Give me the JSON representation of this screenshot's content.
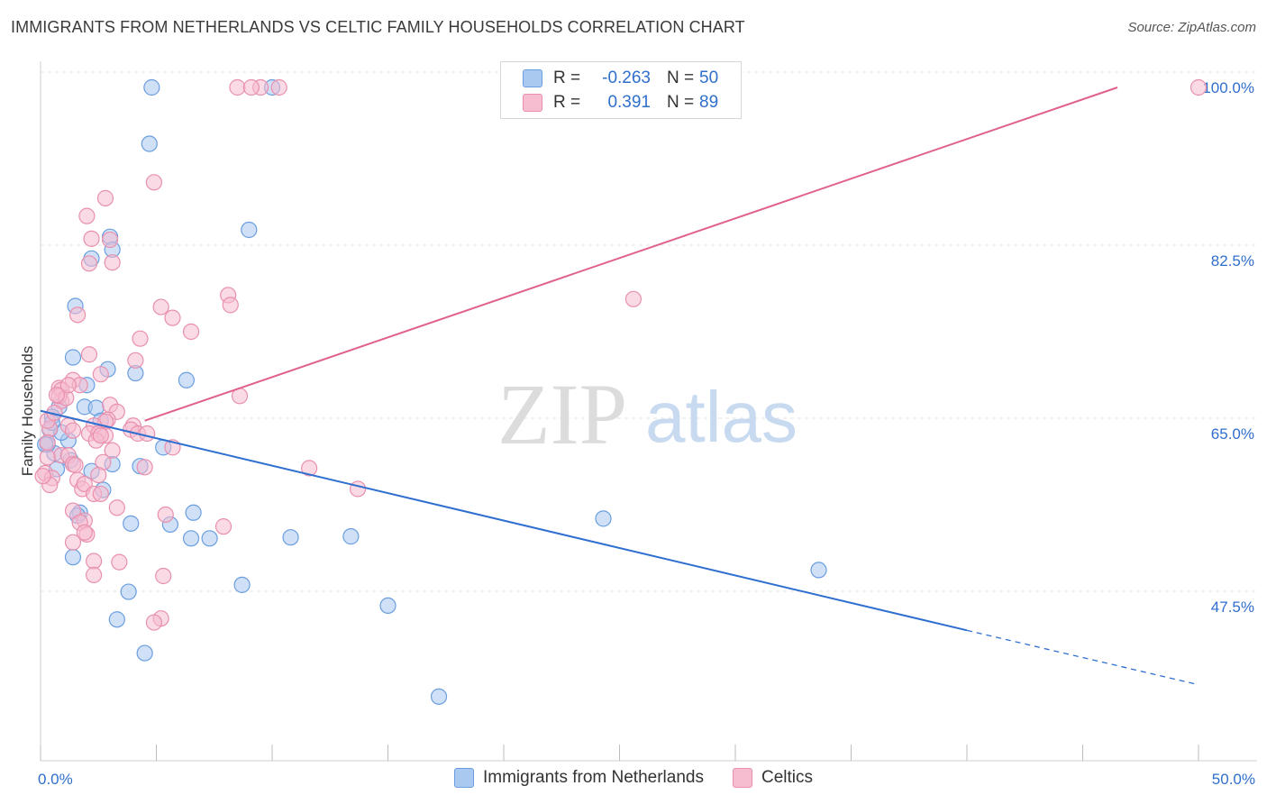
{
  "title": "IMMIGRANTS FROM NETHERLANDS VS CELTIC FAMILY HOUSEHOLDS CORRELATION CHART",
  "source": "Source: ZipAtlas.com",
  "watermark": {
    "zip": "ZIP",
    "atlas": "atlas"
  },
  "legend": {
    "r_label": "R =",
    "n_label": "N =",
    "series": [
      {
        "name": "Immigrants from Netherlands",
        "r": "-0.263",
        "n": "50"
      },
      {
        "name": "Celtics",
        "r": "0.391",
        "n": "89"
      }
    ]
  },
  "colors": {
    "blue_fill": "#aac9f0",
    "blue_stroke": "#6a9ee0",
    "blue_line": "#2f6fd0",
    "pink_fill": "#f6bcd0",
    "pink_stroke": "#e890ae",
    "pink_line": "#e0608e",
    "axis_label": "#2f6fcc",
    "grid": "#e3e3e3"
  },
  "chart_data": {
    "type": "scatter",
    "title": "IMMIGRANTS FROM NETHERLANDS VS CELTIC FAMILY HOUSEHOLDS CORRELATION CHART",
    "xlabel": "",
    "ylabel": "Family Households",
    "xlim": [
      0,
      50
    ],
    "ylim": [
      32,
      102
    ],
    "x_tick_labels": [
      "0.0%",
      "50.0%"
    ],
    "y_ticks": [
      47.5,
      65.0,
      82.5,
      100.0
    ],
    "y_tick_labels": [
      "47.5%",
      "65.0%",
      "82.5%",
      "100.0%"
    ],
    "grid": true,
    "series": [
      {
        "name": "Immigrants from Netherlands",
        "x": [
          4.8,
          10.0,
          4.7,
          9.0,
          3.0,
          3.1,
          2.2,
          1.5,
          2.9,
          4.1,
          1.4,
          6.3,
          2.0,
          1.9,
          2.4,
          0.8,
          0.5,
          0.4,
          0.6,
          2.6,
          1.2,
          0.9,
          0.3,
          1.3,
          0.7,
          4.3,
          5.3,
          2.7,
          3.1,
          1.7,
          1.6,
          3.9,
          5.6,
          6.6,
          6.5,
          7.3,
          8.7,
          10.8,
          13.4,
          24.3,
          33.6,
          15.0,
          3.8,
          3.3,
          4.5,
          1.4,
          2.2,
          17.2,
          0.2,
          0.5
        ],
        "y": [
          100.0,
          100.0,
          94.3,
          85.6,
          84.9,
          83.6,
          82.7,
          77.9,
          71.5,
          71.1,
          72.7,
          70.4,
          69.9,
          67.7,
          67.6,
          67.7,
          66.7,
          65.4,
          63.0,
          66.3,
          64.3,
          65.1,
          63.9,
          62.3,
          61.4,
          61.7,
          63.6,
          59.3,
          61.9,
          57.0,
          56.7,
          55.9,
          55.8,
          57.0,
          54.4,
          54.4,
          49.7,
          54.5,
          54.6,
          56.4,
          51.2,
          47.6,
          49.0,
          46.2,
          42.8,
          52.5,
          61.2,
          38.4,
          63.9,
          66.1
        ]
      },
      {
        "name": "Celtics",
        "x": [
          8.5,
          9.5,
          9.1,
          10.3,
          50.0,
          4.9,
          2.8,
          2.0,
          2.2,
          3.0,
          3.1,
          2.1,
          8.1,
          8.2,
          5.2,
          5.7,
          1.6,
          6.5,
          4.3,
          8.6,
          2.1,
          4.1,
          2.6,
          1.4,
          1.7,
          0.8,
          0.9,
          0.9,
          3.0,
          3.3,
          2.9,
          2.8,
          2.3,
          4.0,
          3.9,
          1.2,
          1.4,
          0.4,
          0.3,
          0.6,
          0.8,
          2.1,
          2.5,
          2.8,
          4.2,
          4.6,
          2.4,
          2.6,
          3.1,
          0.9,
          0.3,
          1.2,
          1.4,
          1.5,
          2.7,
          1.6,
          11.6,
          13.7,
          4.5,
          5.7,
          1.8,
          1.9,
          3.3,
          2.3,
          1.4,
          2.6,
          2.5,
          1.9,
          1.7,
          0.2,
          0.5,
          0.4,
          2.0,
          1.4,
          1.9,
          5.4,
          5.3,
          3.4,
          2.3,
          5.2,
          2.3,
          4.9,
          7.9,
          0.1,
          25.6,
          0.3,
          1.1,
          0.7,
          1.2
        ],
        "y": [
          100.0,
          100.0,
          100.0,
          100.0,
          100.0,
          90.4,
          88.8,
          87.0,
          84.7,
          84.6,
          82.3,
          82.2,
          79.0,
          78.0,
          77.8,
          76.7,
          77.0,
          75.3,
          74.6,
          68.8,
          73.0,
          72.4,
          71.0,
          70.4,
          69.9,
          69.6,
          69.4,
          68.3,
          67.9,
          67.2,
          66.4,
          66.2,
          65.8,
          65.8,
          65.4,
          65.8,
          65.3,
          65.5,
          66.3,
          67.1,
          68.8,
          65.0,
          65.0,
          64.8,
          65.0,
          65.0,
          64.3,
          64.8,
          63.3,
          62.8,
          62.6,
          62.8,
          61.9,
          61.8,
          62.1,
          60.3,
          61.5,
          59.4,
          61.6,
          63.6,
          59.4,
          59.9,
          57.5,
          58.9,
          57.2,
          58.9,
          60.8,
          56.2,
          56.0,
          61.0,
          60.5,
          59.8,
          54.8,
          54.0,
          55.0,
          56.8,
          50.6,
          52.0,
          52.1,
          46.3,
          50.7,
          45.9,
          55.6,
          60.7,
          78.6,
          64.1,
          68.6,
          68.9,
          69.9
        ]
      }
    ],
    "trend_lines": [
      {
        "name": "Immigrants from Netherlands",
        "x_start": 0.0,
        "y_start": 67.3,
        "x_end": 40.0,
        "y_end": 45.1,
        "dashed_to_x": 50.0,
        "dashed_to_y": 39.6
      },
      {
        "name": "Celtics",
        "x_start": 4.5,
        "y_start": 66.3,
        "x_end": 46.5,
        "y_end": 100.0
      }
    ]
  }
}
